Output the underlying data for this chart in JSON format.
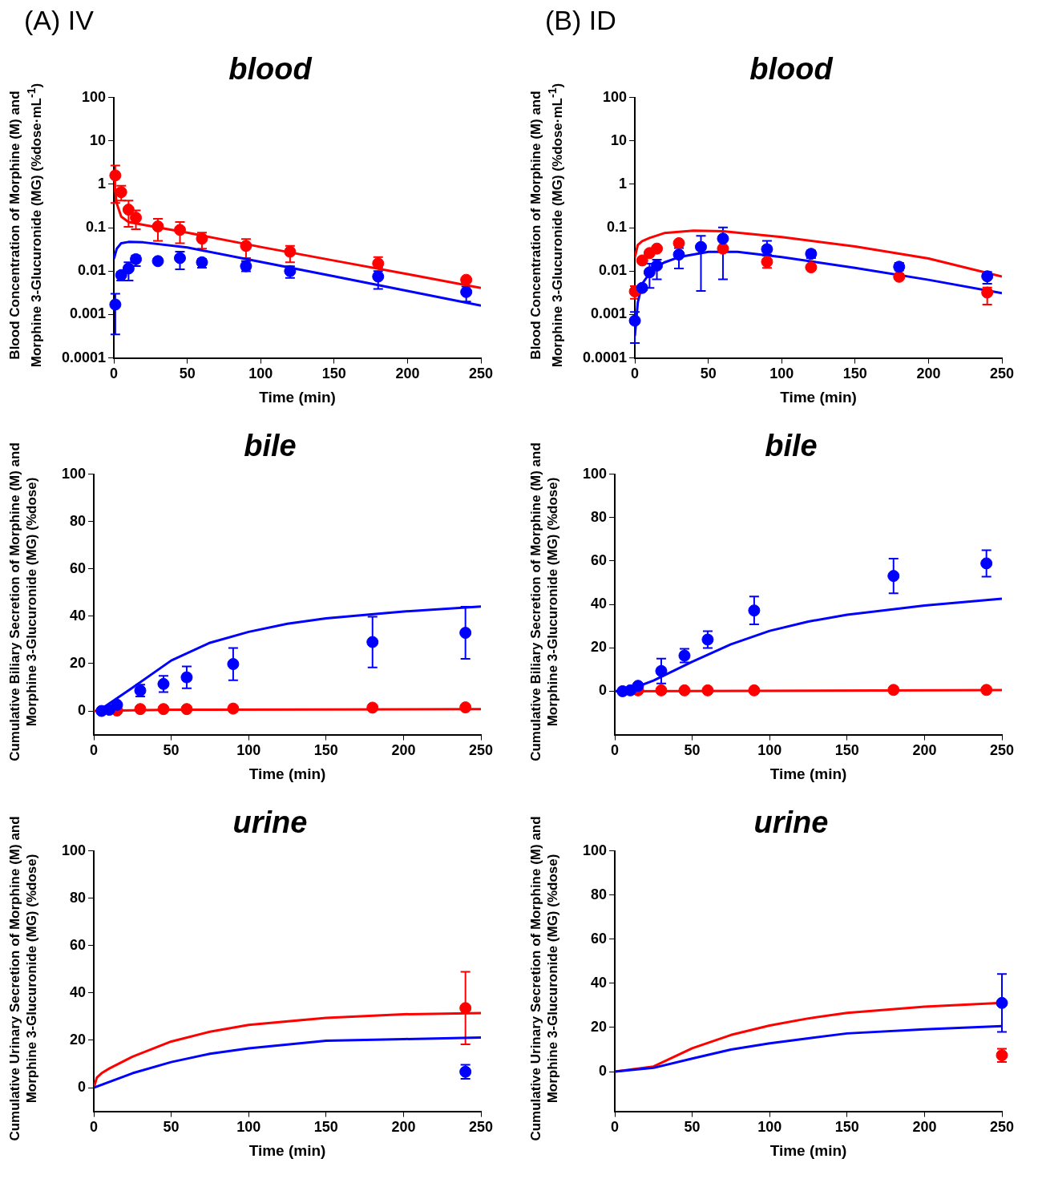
{
  "chart_data": [
    {
      "type": "scatter",
      "title": "blood",
      "annotations": [
        "(A) IV"
      ],
      "xlabel": "Time (min)",
      "ylabel": "Blood Concentration of Morphine (M) and Morphine 3-Glucuronide (MG) (%dose·mL$^{-1}$)",
      "log": "y",
      "xlim": [
        0,
        250
      ],
      "xticks": [
        0,
        50,
        100,
        150,
        200,
        250
      ],
      "ylim": [
        0.0001,
        100
      ],
      "yticks": [
        0.0001,
        0.001,
        0.01,
        0.1,
        1,
        10,
        100
      ],
      "series": [
        {
          "type": "scatter",
          "marker": "circle",
          "color": "#ff0000",
          "x": [
            1,
            5,
            10,
            15,
            30,
            45,
            60,
            90,
            120,
            180,
            240
          ],
          "values": [
            1.6,
            0.66,
            0.26,
            0.17,
            0.107,
            0.089,
            0.056,
            0.038,
            0.028,
            0.015,
            0.0063
          ],
          "errors": [
            [
              0.37,
              2.7
            ],
            [
              0.42,
              0.93
            ],
            [
              0.105,
              0.42
            ],
            [
              0.092,
              0.25
            ],
            [
              0.05,
              0.16
            ],
            [
              0.044,
              0.135
            ],
            [
              0.033,
              0.077
            ],
            [
              0.02,
              0.055
            ],
            [
              0.016,
              0.038
            ],
            [
              0.012,
              0.021
            ],
            null
          ]
        },
        {
          "type": "scatter",
          "marker": "circle",
          "color": "#0000ff",
          "x": [
            1,
            5,
            10,
            15,
            30,
            45,
            60,
            90,
            120,
            180,
            240
          ],
          "values": [
            0.0017,
            0.0081,
            0.0115,
            0.0188,
            0.017,
            0.02,
            0.016,
            0.013,
            0.01,
            0.0075,
            0.0033
          ],
          "errors": [
            [
              0.00035,
              0.003
            ],
            [
              0.0061,
              0.0095
            ],
            [
              0.0061,
              0.016
            ],
            [
              0.013,
              0.023
            ],
            null,
            [
              0.011,
              0.028
            ],
            [
              0.012,
              0.019
            ],
            [
              0.0099,
              0.017
            ],
            [
              0.007,
              0.0129
            ],
            [
              0.0039,
              0.01
            ],
            [
              0.002,
              0.0044
            ]
          ]
        },
        {
          "type": "line",
          "color": "#ff0000",
          "x": [
            0,
            2,
            5,
            10,
            20,
            50,
            100,
            150,
            200,
            250
          ],
          "values": [
            1.2,
            0.36,
            0.18,
            0.135,
            0.117,
            0.077,
            0.036,
            0.0175,
            0.0085,
            0.0041
          ]
        },
        {
          "type": "line",
          "color": "#0000ff",
          "x": [
            0,
            2,
            5,
            10,
            20,
            50,
            100,
            150,
            200,
            250
          ],
          "values": [
            0.019,
            0.033,
            0.044,
            0.047,
            0.046,
            0.035,
            0.0163,
            0.0076,
            0.0035,
            0.0016
          ]
        }
      ]
    },
    {
      "type": "scatter",
      "title": "blood",
      "annotations": [
        "(B) ID"
      ],
      "xlabel": "Time (min)",
      "ylabel": "Blood Concentration of Morphine (M) and Morphine 3-Glucuronide (MG) (%dose·mL$^{-1}$)",
      "log": "y",
      "xlim": [
        0,
        250
      ],
      "xticks": [
        0,
        50,
        100,
        150,
        200,
        250
      ],
      "ylim": [
        0.0001,
        100
      ],
      "yticks": [
        0.0001,
        0.001,
        0.01,
        0.1,
        1,
        10,
        100
      ],
      "series": [
        {
          "type": "scatter",
          "marker": "circle",
          "color": "#ff0000",
          "x": [
            0,
            5,
            10,
            15,
            30,
            45,
            60,
            90,
            120,
            180,
            240
          ],
          "values": [
            0.0034,
            0.0176,
            0.026,
            0.033,
            0.044,
            null,
            0.033,
            0.0164,
            0.0122,
            0.0074,
            0.0032
          ],
          "errors": [
            [
              0.0023,
              0.0045
            ],
            null,
            null,
            null,
            null,
            null,
            null,
            [
              0.0119,
              0.0227
            ],
            null,
            null,
            [
              0.0017,
              0.0042
            ]
          ]
        },
        {
          "type": "scatter",
          "marker": "circle",
          "color": "#0000ff",
          "x": [
            0,
            5,
            10,
            15,
            30,
            45,
            60,
            90,
            120,
            180,
            240
          ],
          "values": [
            0.00072,
            0.0041,
            0.0094,
            0.0134,
            0.024,
            0.036,
            0.056,
            0.032,
            0.025,
            0.0126,
            0.0076
          ],
          "errors": [
            [
              0.00022,
              0.00114
            ],
            null,
            [
              0.0041,
              0.0148
            ],
            [
              0.0065,
              0.0184
            ],
            [
              0.0115,
              0.034
            ],
            [
              0.0035,
              0.065
            ],
            [
              0.0065,
              0.102
            ],
            [
              0.024,
              0.05
            ],
            [
              0.02,
              0.03
            ],
            [
              0.0103,
              0.0154
            ],
            [
              0.0051,
              0.0096
            ]
          ]
        },
        {
          "type": "line",
          "color": "#ff0000",
          "x": [
            0,
            2,
            5,
            10,
            20,
            40,
            60,
            100,
            150,
            200,
            250
          ],
          "values": [
            0.021,
            0.04,
            0.049,
            0.058,
            0.075,
            0.086,
            0.083,
            0.061,
            0.037,
            0.0195,
            0.0075
          ]
        },
        {
          "type": "line",
          "color": "#0000ff",
          "x": [
            0,
            2,
            5,
            10,
            15,
            20,
            30,
            50,
            70,
            100,
            150,
            200,
            250
          ],
          "values": [
            0.00032,
            0.0019,
            0.0051,
            0.0089,
            0.0127,
            0.0158,
            0.021,
            0.0277,
            0.0277,
            0.021,
            0.0119,
            0.0063,
            0.0031
          ]
        }
      ]
    },
    {
      "type": "scatter",
      "title": "bile",
      "xlabel": "Time (min)",
      "ylabel": "Cumulative Biliary Secretion of Morphine (M) and Morphine 3-Glucuronide (MG) (%dose)",
      "xlim": [
        0,
        250
      ],
      "xticks": [
        0,
        50,
        100,
        150,
        200,
        250
      ],
      "ylim": [
        -10,
        100
      ],
      "yticks": [
        0,
        20,
        40,
        60,
        80,
        100
      ],
      "series": [
        {
          "type": "scatter",
          "marker": "circle",
          "color": "#ff0000",
          "x": [
            15,
            30,
            45,
            60,
            90,
            180,
            240
          ],
          "values": [
            0.2,
            0.8,
            0.8,
            0.8,
            1,
            1.4,
            1.5
          ]
        },
        {
          "type": "scatter",
          "marker": "circle",
          "color": "#0000ff",
          "x": [
            5,
            10,
            15,
            30,
            45,
            60,
            90,
            180,
            240
          ],
          "values": [
            0,
            0.5,
            2.6,
            8.6,
            11.4,
            14.2,
            19.8,
            29.1,
            33
          ],
          "errors": [
            null,
            null,
            null,
            2.5,
            3.4,
            4.6,
            6.8,
            10.7,
            11
          ]
        },
        {
          "type": "line",
          "color": "#ff0000",
          "x": [
            0,
            50,
            250
          ],
          "values": [
            0,
            0.5,
            0.8
          ]
        },
        {
          "type": "line",
          "color": "#0000ff",
          "x": [
            3,
            25,
            50,
            75,
            100,
            125,
            150,
            200,
            250
          ],
          "values": [
            0,
            9.8,
            21.3,
            28.8,
            33.4,
            36.8,
            39.1,
            42,
            44.1
          ]
        }
      ]
    },
    {
      "type": "scatter",
      "title": "bile",
      "xlabel": "Time (min)",
      "ylabel": "Cumulative Biliary Secretion of Morphine (M) and Morphine 3-Glucuronide (MG) (%dose)",
      "xlim": [
        0,
        250
      ],
      "xticks": [
        0,
        50,
        100,
        150,
        200,
        250
      ],
      "ylim": [
        -20,
        100
      ],
      "yticks": [
        0,
        20,
        40,
        60,
        80,
        100
      ],
      "series": [
        {
          "type": "scatter",
          "marker": "circle",
          "color": "#ff0000",
          "x": [
            15,
            30,
            45,
            60,
            90,
            180,
            240
          ],
          "values": [
            0.4,
            0.4,
            0.4,
            0.4,
            0.4,
            0.6,
            0.6
          ]
        },
        {
          "type": "scatter",
          "marker": "circle",
          "color": "#0000ff",
          "x": [
            5,
            10,
            15,
            30,
            45,
            60,
            90,
            180,
            240
          ],
          "values": [
            0,
            0.4,
            2.5,
            9.3,
            16.4,
            23.8,
            37.2,
            53.1,
            58.9
          ],
          "errors": [
            null,
            null,
            null,
            5.7,
            3.1,
            3.9,
            6.4,
            8,
            6.1
          ]
        },
        {
          "type": "line",
          "color": "#ff0000",
          "x": [
            0,
            250
          ],
          "values": [
            0,
            0.5
          ]
        },
        {
          "type": "line",
          "color": "#0000ff",
          "x": [
            0,
            10,
            25,
            50,
            75,
            100,
            125,
            150,
            200,
            250
          ],
          "values": [
            0,
            0.9,
            4.9,
            13.6,
            21.6,
            27.8,
            32.1,
            35.2,
            39.5,
            42.6
          ]
        }
      ]
    },
    {
      "type": "scatter",
      "title": "urine",
      "xlabel": "Time (min)",
      "ylabel": "Cumulative Urinary Secretion of Morphine (M) and Morphine 3-Glucuronide (MG) (%dose)",
      "xlim": [
        0,
        250
      ],
      "xticks": [
        0,
        50,
        100,
        150,
        200,
        250
      ],
      "ylim": [
        -10,
        100
      ],
      "yticks": [
        0,
        20,
        40,
        60,
        80,
        100
      ],
      "series": [
        {
          "type": "scatter",
          "marker": "circle",
          "color": "#ff0000",
          "x": [
            240
          ],
          "values": [
            33.6
          ],
          "errors": [
            15.3
          ]
        },
        {
          "type": "scatter",
          "marker": "circle",
          "color": "#0000ff",
          "x": [
            240
          ],
          "values": [
            6.7
          ],
          "errors": [
            3
          ]
        },
        {
          "type": "line",
          "color": "#ff0000",
          "x": [
            0,
            2,
            5,
            10,
            25,
            50,
            75,
            100,
            150,
            200,
            250
          ],
          "values": [
            0,
            4.3,
            6.1,
            8.1,
            13.1,
            19.5,
            23.6,
            26.5,
            29.5,
            31,
            31.5
          ]
        },
        {
          "type": "line",
          "color": "#0000ff",
          "x": [
            0,
            25,
            50,
            75,
            100,
            150,
            200,
            250
          ],
          "values": [
            0,
            6.1,
            10.8,
            14.3,
            16.6,
            19.8,
            20.5,
            21.2
          ]
        }
      ]
    },
    {
      "type": "scatter",
      "title": "urine",
      "xlabel": "Time (min)",
      "ylabel": "Cumulative Urinary Secretion of Morphine (M) and Morphine 3-Glucuronide (MG) (%dose)",
      "xlim": [
        0,
        250
      ],
      "xticks": [
        0,
        50,
        100,
        150,
        200,
        250
      ],
      "ylim": [
        -18,
        100
      ],
      "yticks": [
        0,
        20,
        40,
        60,
        80,
        100
      ],
      "series": [
        {
          "type": "scatter",
          "marker": "circle",
          "color": "#ff0000",
          "x": [
            250
          ],
          "values": [
            7.4
          ],
          "errors": [
            3
          ]
        },
        {
          "type": "scatter",
          "marker": "circle",
          "color": "#0000ff",
          "x": [
            250
          ],
          "values": [
            31.1
          ],
          "errors": [
            13.1
          ]
        },
        {
          "type": "line",
          "color": "#ff0000",
          "x": [
            0,
            25,
            50,
            75,
            100,
            125,
            150,
            200,
            250
          ],
          "values": [
            0,
            2.3,
            10.6,
            16.6,
            20.9,
            24.1,
            26.6,
            29.4,
            31.1
          ]
        },
        {
          "type": "line",
          "color": "#0000ff",
          "x": [
            0,
            25,
            50,
            75,
            100,
            125,
            150,
            200,
            250
          ],
          "values": [
            0,
            1.7,
            5.9,
            10,
            12.8,
            15.1,
            17.3,
            19.2,
            20.6
          ]
        }
      ]
    }
  ]
}
